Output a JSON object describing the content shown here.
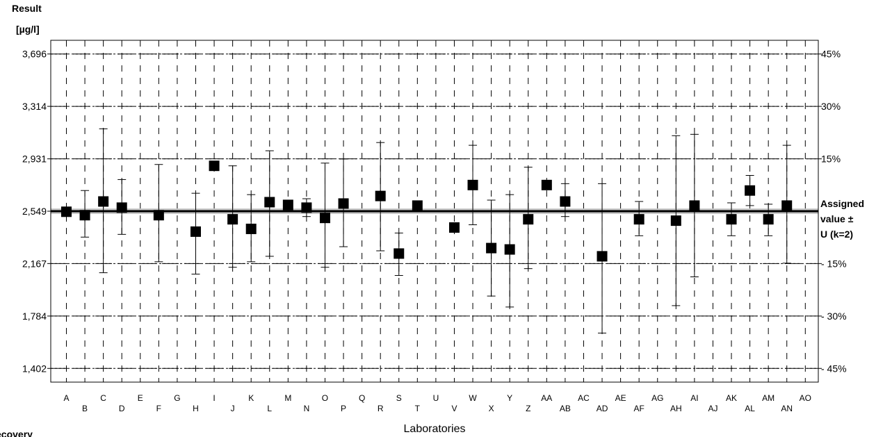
{
  "y_axis_label": {
    "line1": "Result",
    "line2": "[µg/l]"
  },
  "x_axis_label": "Laboratories",
  "bottom_left_label": "ecovery",
  "assigned_label": {
    "line1": "Assigned",
    "line2": "value ±",
    "line3": "U (k=2)"
  },
  "colors": {
    "marker": "#000000",
    "band": "#c8c8c8",
    "grid": "#000000"
  },
  "chart_data": {
    "type": "scatter",
    "title": "",
    "xlabel": "Laboratories",
    "ylabel": "Result [µg/l]",
    "ylim": [
      1.302,
      3.796
    ],
    "y_ticks": [
      1.402,
      1.784,
      2.167,
      2.549,
      2.931,
      3.314,
      3.696
    ],
    "y_tick_labels": [
      "1,402",
      "1,784",
      "2,167",
      "2,549",
      "2,931",
      "3,314",
      "3,696"
    ],
    "right_ticks": [
      {
        "value": 3.696,
        "label": "45%"
      },
      {
        "value": 3.314,
        "label": "30%"
      },
      {
        "value": 2.931,
        "label": "15%"
      },
      {
        "value": 2.167,
        "label": "- 15%"
      },
      {
        "value": 1.784,
        "label": "- 30%"
      },
      {
        "value": 1.402,
        "label": "- 45%"
      }
    ],
    "assigned_value": 2.549,
    "assigned_uncertainty": 0.02,
    "grid": true,
    "categories": [
      "A",
      "B",
      "C",
      "D",
      "E",
      "F",
      "G",
      "H",
      "I",
      "J",
      "K",
      "L",
      "M",
      "N",
      "O",
      "P",
      "Q",
      "R",
      "S",
      "T",
      "U",
      "V",
      "W",
      "X",
      "Y",
      "Z",
      "AA",
      "AB",
      "AC",
      "AD",
      "AE",
      "AF",
      "AG",
      "AH",
      "AI",
      "AJ",
      "AK",
      "AL",
      "AM",
      "AN",
      "AO"
    ],
    "points": [
      {
        "lab": "A",
        "value": 2.545,
        "low": null,
        "high": null
      },
      {
        "lab": "B",
        "value": 2.52,
        "low": 2.36,
        "high": 2.7
      },
      {
        "lab": "C",
        "value": 2.62,
        "low": 2.1,
        "high": 3.15
      },
      {
        "lab": "D",
        "value": 2.575,
        "low": 2.38,
        "high": 2.78
      },
      {
        "lab": "F",
        "value": 2.52,
        "low": 2.18,
        "high": 2.89
      },
      {
        "lab": "H",
        "value": 2.4,
        "low": 2.09,
        "high": 2.68
      },
      {
        "lab": "I",
        "value": 2.88,
        "low": null,
        "high": null
      },
      {
        "lab": "J",
        "value": 2.49,
        "low": 2.14,
        "high": 2.88
      },
      {
        "lab": "K",
        "value": 2.42,
        "low": 2.18,
        "high": 2.67
      },
      {
        "lab": "L",
        "value": 2.615,
        "low": 2.22,
        "high": 2.99
      },
      {
        "lab": "M",
        "value": 2.595,
        "low": null,
        "high": null
      },
      {
        "lab": "N",
        "value": 2.575,
        "low": 2.51,
        "high": 2.64
      },
      {
        "lab": "O",
        "value": 2.5,
        "low": 2.14,
        "high": 2.9
      },
      {
        "lab": "P",
        "value": 2.605,
        "low": 2.29,
        "high": 2.93
      },
      {
        "lab": "R",
        "value": 2.66,
        "low": 2.26,
        "high": 3.05
      },
      {
        "lab": "S",
        "value": 2.24,
        "low": 2.08,
        "high": 2.39
      },
      {
        "lab": "T",
        "value": 2.59,
        "low": null,
        "high": null
      },
      {
        "lab": "V",
        "value": 2.43,
        "low": null,
        "high": null
      },
      {
        "lab": "W",
        "value": 2.74,
        "low": 2.45,
        "high": 3.03
      },
      {
        "lab": "X",
        "value": 2.28,
        "low": 1.93,
        "high": 2.63
      },
      {
        "lab": "Y",
        "value": 2.27,
        "low": 1.85,
        "high": 2.67
      },
      {
        "lab": "Z",
        "value": 2.49,
        "low": 2.13,
        "high": 2.87
      },
      {
        "lab": "AA",
        "value": 2.74,
        "low": null,
        "high": null
      },
      {
        "lab": "AB",
        "value": 2.62,
        "low": 2.51,
        "high": 2.75
      },
      {
        "lab": "AD",
        "value": 2.22,
        "low": 1.66,
        "high": 2.75
      },
      {
        "lab": "AF",
        "value": 2.49,
        "low": 2.37,
        "high": 2.62
      },
      {
        "lab": "AH",
        "value": 2.48,
        "low": 1.86,
        "high": 3.1
      },
      {
        "lab": "AI",
        "value": 2.59,
        "low": 2.07,
        "high": 3.11
      },
      {
        "lab": "AK",
        "value": 2.49,
        "low": 2.37,
        "high": 2.61
      },
      {
        "lab": "AL",
        "value": 2.7,
        "low": 2.59,
        "high": 2.81
      },
      {
        "lab": "AM",
        "value": 2.49,
        "low": 2.37,
        "high": 2.6
      },
      {
        "lab": "AN",
        "value": 2.59,
        "low": 2.17,
        "high": 3.03
      }
    ]
  }
}
